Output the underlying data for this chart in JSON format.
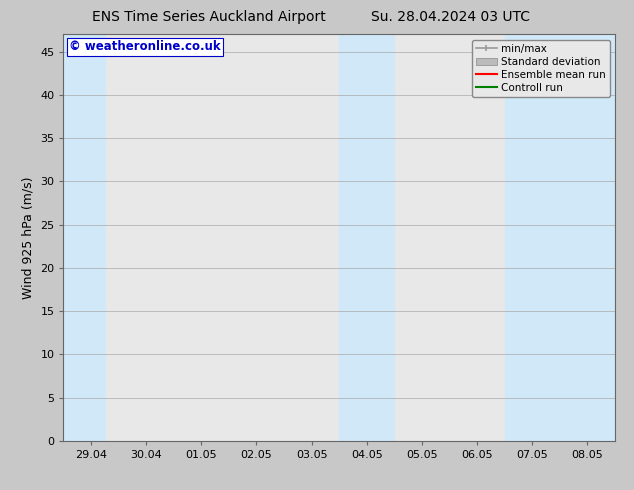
{
  "title_left": "ENS Time Series Auckland Airport",
  "title_right": "Su. 28.04.2024 03 UTC",
  "ylabel": "Wind 925 hPa (m/s)",
  "watermark": "© weatheronline.co.uk",
  "xtick_labels": [
    "29.04",
    "30.04",
    "01.05",
    "02.05",
    "03.05",
    "04.05",
    "05.05",
    "06.05",
    "07.05",
    "08.05"
  ],
  "xtick_positions": [
    0,
    1,
    2,
    3,
    4,
    5,
    6,
    7,
    8,
    9
  ],
  "ylim": [
    0,
    47
  ],
  "yticks": [
    0,
    5,
    10,
    15,
    20,
    25,
    30,
    35,
    40,
    45
  ],
  "xlim": [
    -0.5,
    9.5
  ],
  "bg_color": "#c8c8c8",
  "plot_bg_color": "#e8e8e8",
  "shaded_bands": [
    {
      "x_start": -0.5,
      "x_end": 0.25,
      "color": "#d0e8f8"
    },
    {
      "x_start": 4.5,
      "x_end": 5.5,
      "color": "#d0e8f8"
    },
    {
      "x_start": 7.5,
      "x_end": 9.5,
      "color": "#d0e8f8"
    }
  ],
  "minmax_color": "#999999",
  "stddev_color": "#bbbbbb",
  "mean_color": "#ff0000",
  "control_color": "#008000",
  "legend_labels": [
    "min/max",
    "Standard deviation",
    "Ensemble mean run",
    "Controll run"
  ],
  "title_fontsize": 10,
  "axis_label_fontsize": 9,
  "tick_fontsize": 8,
  "watermark_color": "#0000cc",
  "watermark_fontsize": 8.5,
  "legend_fontsize": 7.5
}
